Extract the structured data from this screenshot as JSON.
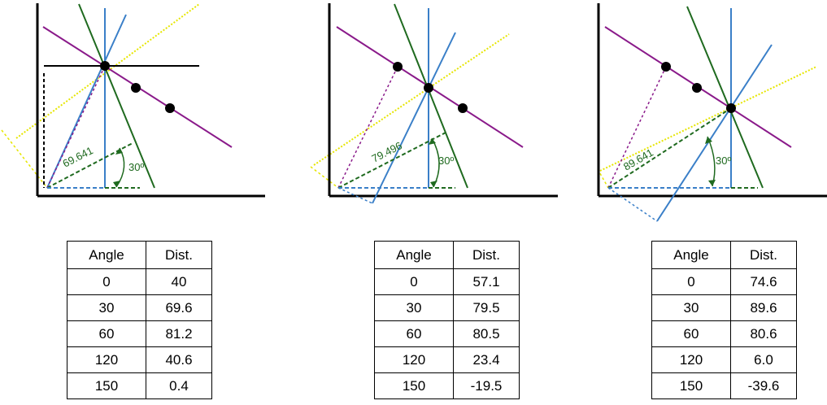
{
  "panels": [
    {
      "dist_label": "69.641",
      "angle_label": "30º",
      "table": {
        "headers": [
          "Angle",
          "Dist."
        ],
        "rows": [
          [
            "0",
            "40"
          ],
          [
            "30",
            "69.6"
          ],
          [
            "60",
            "81.2"
          ],
          [
            "120",
            "40.6"
          ],
          [
            "150",
            "0.4"
          ]
        ]
      }
    },
    {
      "dist_label": "79.496",
      "angle_label": "30º",
      "table": {
        "headers": [
          "Angle",
          "Dist."
        ],
        "rows": [
          [
            "0",
            "57.1"
          ],
          [
            "30",
            "79.5"
          ],
          [
            "60",
            "80.5"
          ],
          [
            "120",
            "23.4"
          ],
          [
            "150",
            "-19.5"
          ]
        ]
      }
    },
    {
      "dist_label": "89.641",
      "angle_label": "30º",
      "table": {
        "headers": [
          "Angle",
          "Dist."
        ],
        "rows": [
          [
            "0",
            "74.6"
          ],
          [
            "30",
            "89.6"
          ],
          [
            "60",
            "80.6"
          ],
          [
            "120",
            "6.0"
          ],
          [
            "150",
            "-39.6"
          ]
        ]
      }
    }
  ],
  "colors": {
    "blue": "#3a7fc8",
    "green": "#1f6a1f",
    "purple": "#8a1a8a",
    "yellow": "#e6e600",
    "black": "#000000"
  }
}
